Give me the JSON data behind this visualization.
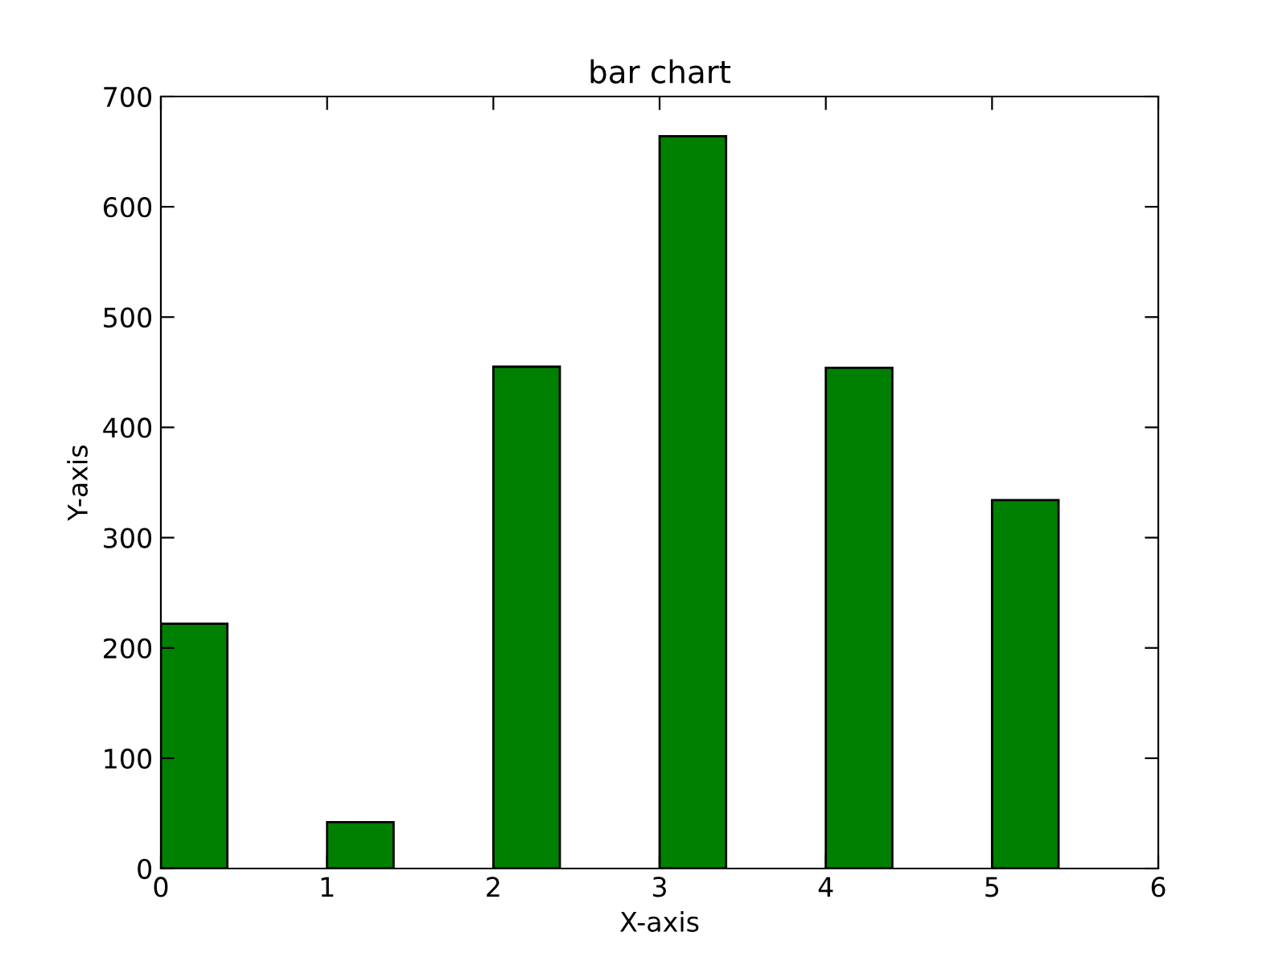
{
  "chart_data": {
    "type": "bar",
    "title": "bar chart",
    "xlabel": "X-axis",
    "ylabel": "Y-axis",
    "x": [
      0.2,
      1.2,
      2.2,
      3.2,
      4.2,
      5.2
    ],
    "values": [
      222,
      42,
      455,
      664,
      454,
      334
    ],
    "color": "#008000",
    "xlim": [
      0,
      6
    ],
    "xticks": [
      0,
      1,
      2,
      3,
      4,
      5,
      6
    ],
    "ylim": [
      0,
      700
    ],
    "yticks": [
      0,
      100,
      200,
      300,
      400,
      500,
      600,
      700
    ],
    "grid": false
  }
}
